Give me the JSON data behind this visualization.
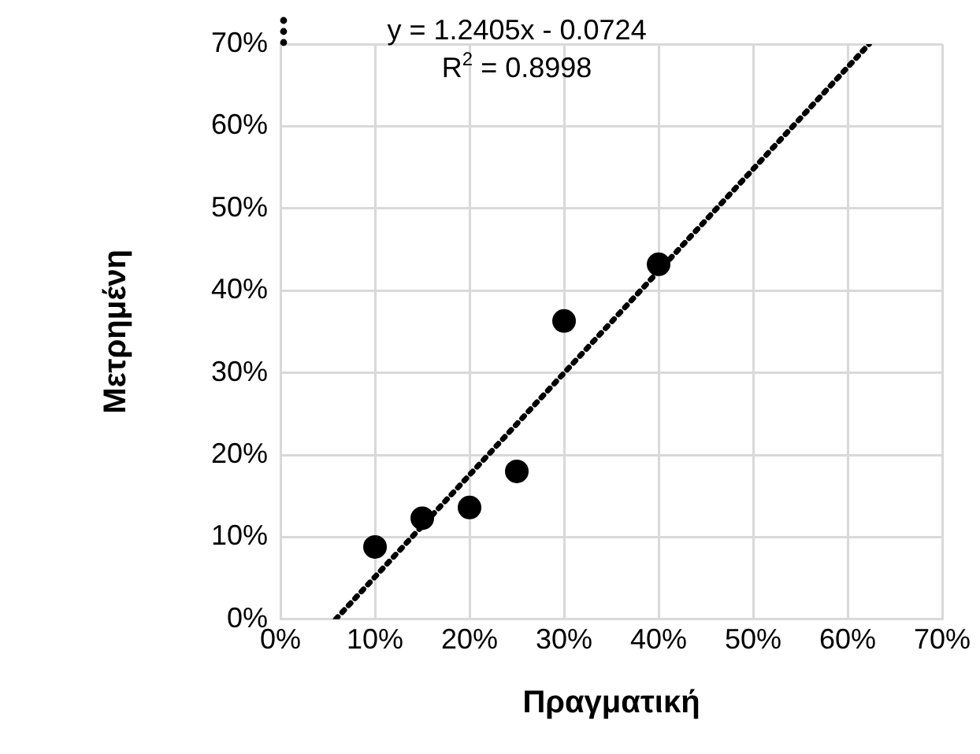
{
  "chart_data": {
    "type": "scatter",
    "xlabel": "Πραγματική",
    "ylabel": "Μετρημένη",
    "annotations": [
      "y = 1.2405x - 0.0724",
      "R$^{2}$ = 0.8998"
    ],
    "series": [
      {
        "type": "scatter",
        "color": "#000000",
        "marker": "circle",
        "x": [
          10,
          15,
          20,
          25,
          30,
          40
        ],
        "values": [
          8.8,
          12.3,
          13.6,
          18.0,
          36.3,
          43.2
        ]
      },
      {
        "type": "line",
        "color": "#000000",
        "line_style": "dotted",
        "marker": "none",
        "x": [
          5.84,
          62.27
        ],
        "values": [
          0,
          70
        ]
      }
    ],
    "xlim": [
      0,
      70
    ],
    "ylim": [
      0,
      70
    ],
    "xticks": [
      {
        "value": 0,
        "label": "0%"
      },
      {
        "value": 10,
        "label": "10%"
      },
      {
        "value": 20,
        "label": "20%"
      },
      {
        "value": 30,
        "label": "30%"
      },
      {
        "value": 40,
        "label": "40%"
      },
      {
        "value": 50,
        "label": "50%"
      },
      {
        "value": 60,
        "label": "60%"
      },
      {
        "value": 70,
        "label": "70%"
      }
    ],
    "yticks": [
      {
        "value": 0,
        "label": "0%"
      },
      {
        "value": 10,
        "label": "10%"
      },
      {
        "value": 20,
        "label": "20%"
      },
      {
        "value": 30,
        "label": "30%"
      },
      {
        "value": 40,
        "label": "40%"
      },
      {
        "value": 50,
        "label": "50%"
      },
      {
        "value": 60,
        "label": "60%"
      },
      {
        "value": 70,
        "label": "70%"
      }
    ],
    "grid": true,
    "legend": false
  }
}
